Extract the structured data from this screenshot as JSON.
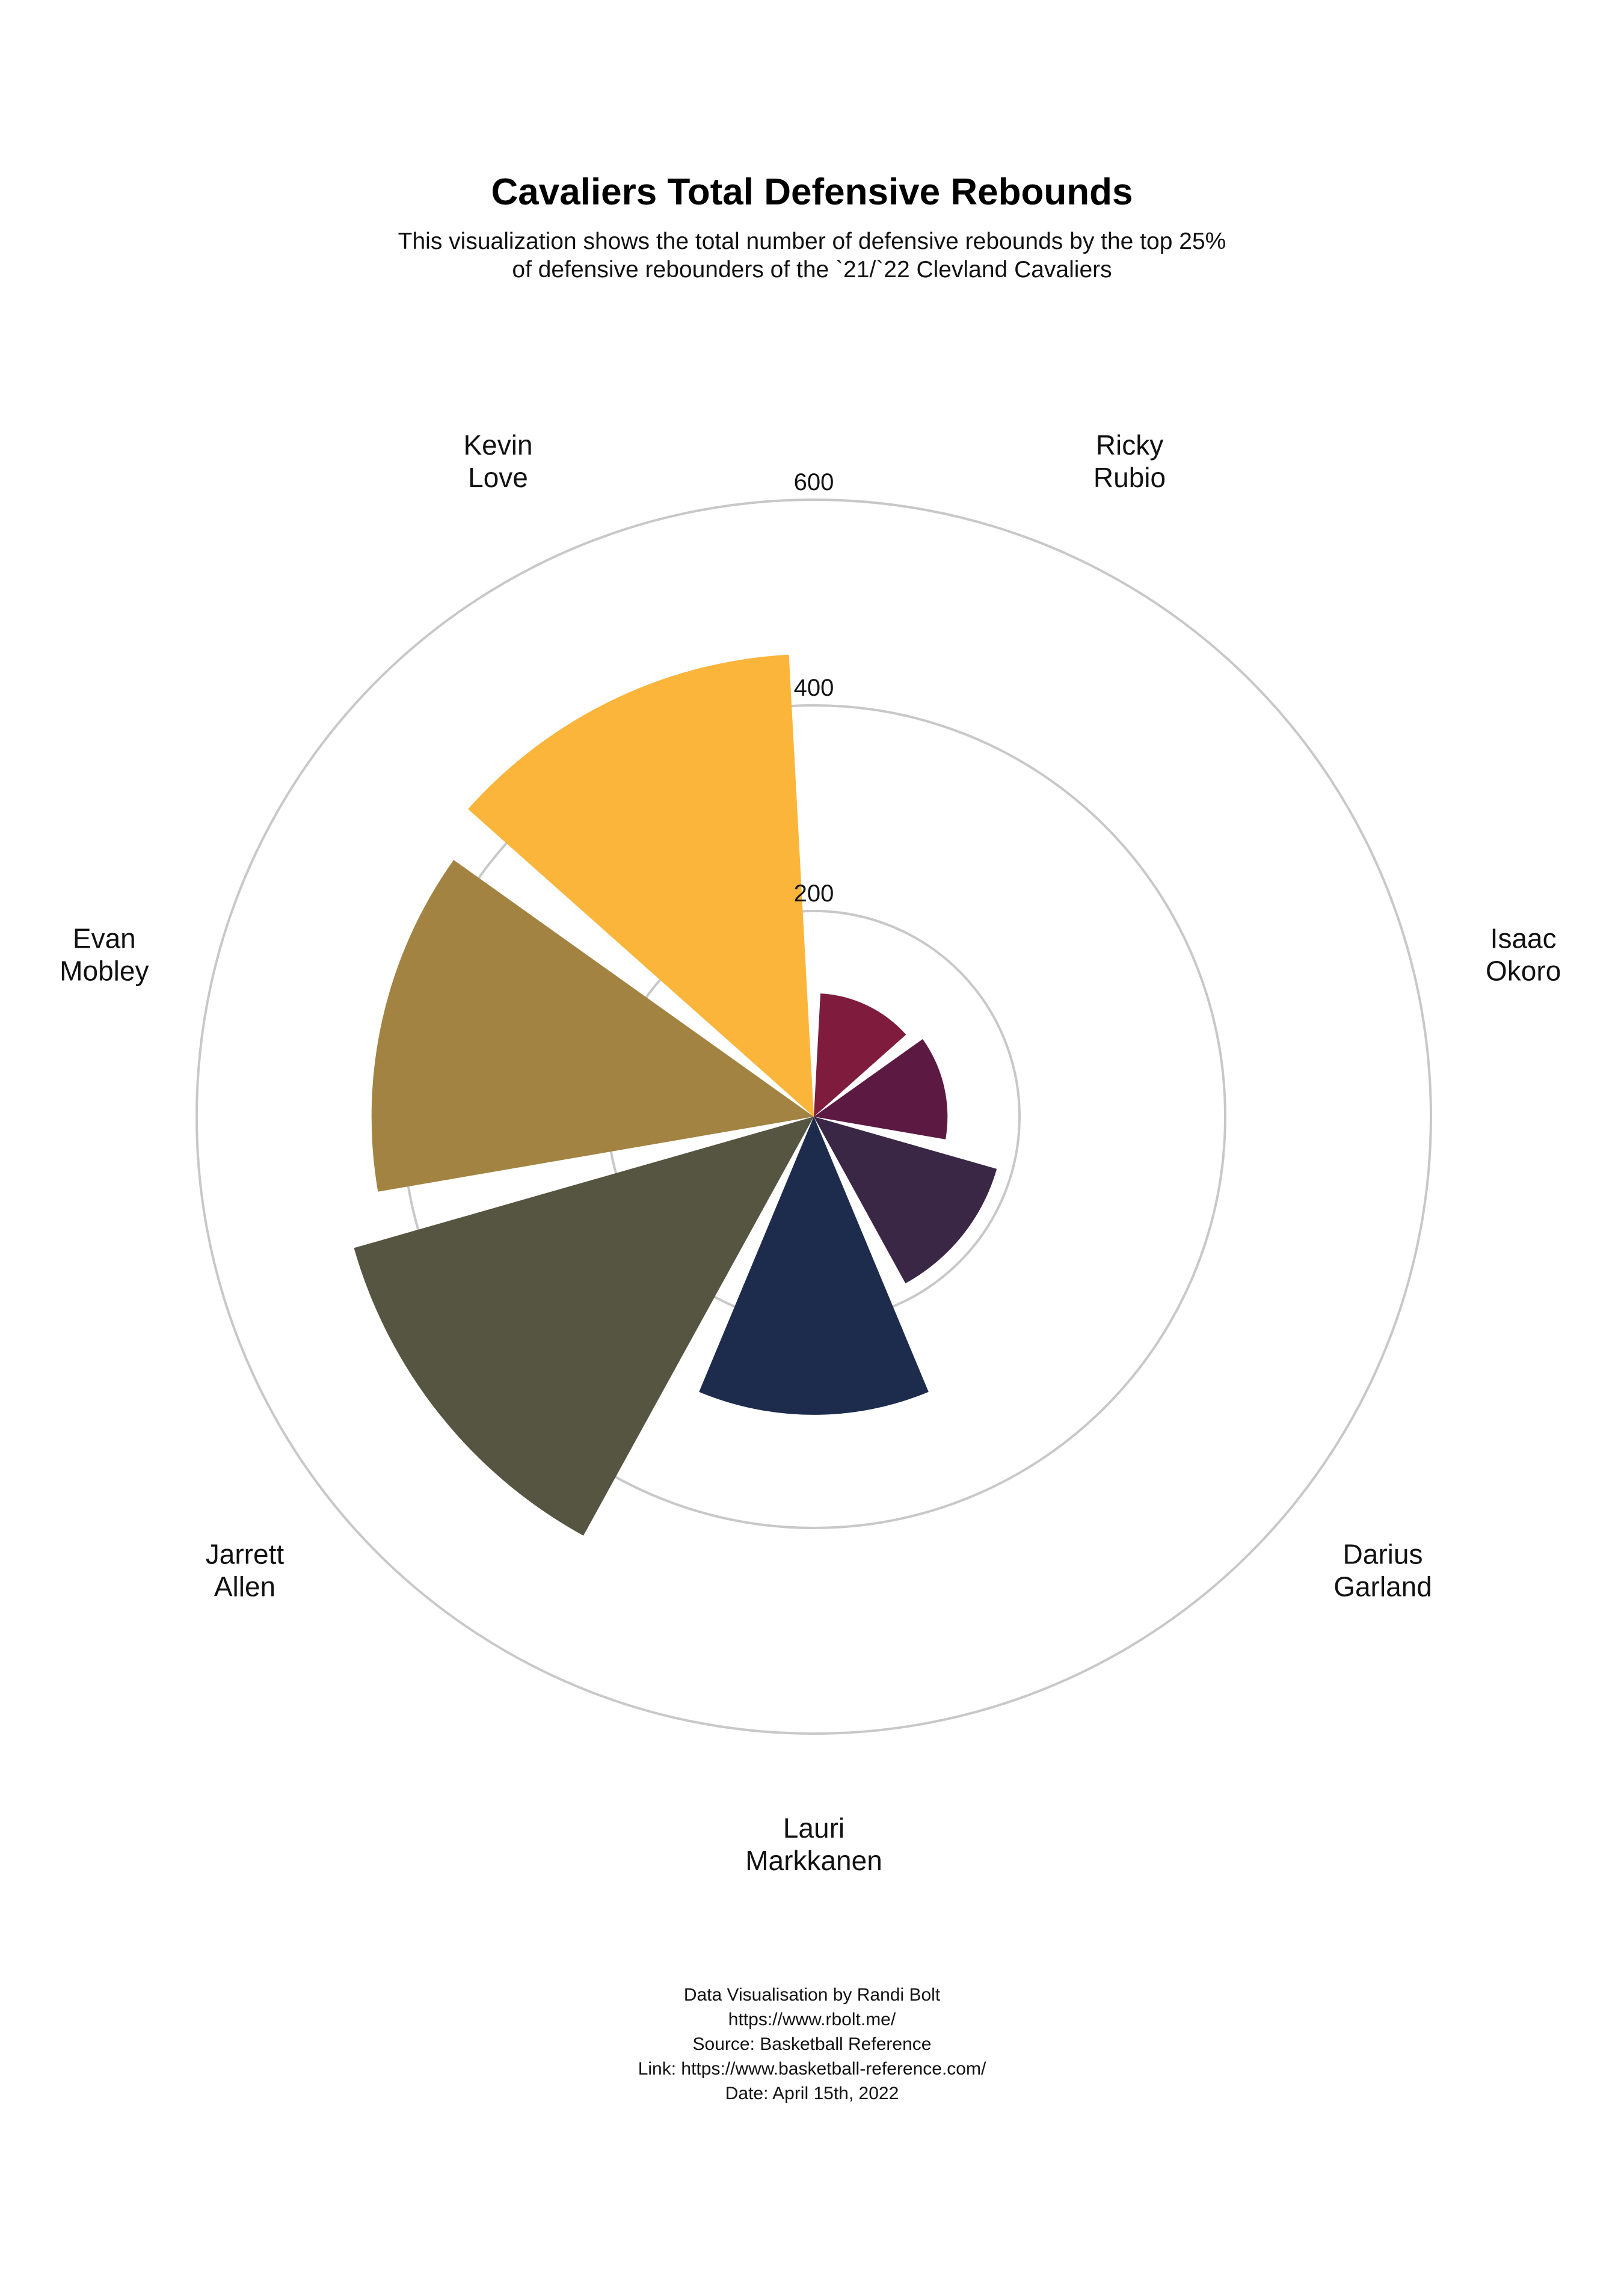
{
  "header": {
    "title": "Cavaliers Total Defensive Rebounds",
    "subtitle": "This visualization shows the total number of defensive rebounds by the top 25% of defensive rebounders of the `21/`22  Clevland Cavaliers"
  },
  "chart_data": {
    "type": "bar",
    "polar": true,
    "categories": [
      [
        "Ricky",
        "Rubio"
      ],
      [
        "Isaac",
        "Okoro"
      ],
      [
        "Darius",
        "Garland"
      ],
      [
        "Lauri",
        "Markkanen"
      ],
      [
        "Jarrett",
        "Allen"
      ],
      [
        "Evan",
        "Mobley"
      ],
      [
        "Kevin",
        "Love"
      ]
    ],
    "values": [
      120,
      130,
      185,
      290,
      465,
      430,
      450
    ],
    "colors": [
      "#7f1c3e",
      "#5c1a42",
      "#3a2746",
      "#1d2c4c",
      "#565541",
      "#a28342",
      "#fbb53b"
    ],
    "radial_ticks": [
      "200",
      "400",
      "600"
    ],
    "radial_tick_values": [
      200,
      400,
      600
    ],
    "rlim": [
      0,
      600
    ],
    "grid": true
  },
  "footer": {
    "lines": [
      "Data Visualisation by Randi Bolt",
      "https://www.rbolt.me/",
      "Source: Basketball Reference",
      "Link: https://www.basketball-reference.com/",
      "Date: April 15th, 2022"
    ]
  }
}
